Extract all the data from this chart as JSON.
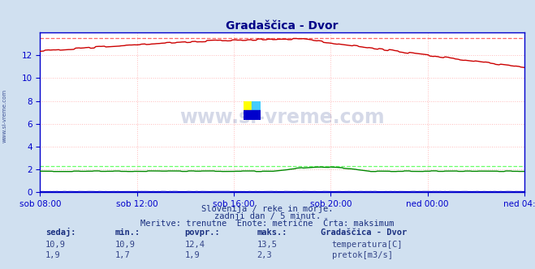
{
  "title": "Gradaščica - Dvor",
  "bg_color": "#d0e0f0",
  "plot_bg_color": "#ffffff",
  "grid_color": "#ffbbbb",
  "temp_color": "#cc0000",
  "flow_color": "#008800",
  "height_color": "#0000cc",
  "temp_max_color": "#ff6666",
  "flow_max_color": "#66ff66",
  "axis_color": "#0000cc",
  "title_color": "#000088",
  "tick_color": "#0000cc",
  "watermark_color": "#1a3080",
  "yticks": [
    0,
    2,
    4,
    6,
    8,
    10,
    12
  ],
  "ymin": 0,
  "ymax": 14.0,
  "temp_max_val": 13.5,
  "flow_max_val": 2.3,
  "temp_current": "10,9",
  "temp_min": "10,9",
  "temp_avg": "12,4",
  "temp_maks": "13,5",
  "flow_current": "1,9",
  "flow_min": "1,7",
  "flow_avg": "1,9",
  "flow_maks": "2,3",
  "xtick_labels": [
    "sob 08:00",
    "sob 12:00",
    "sob 16:00",
    "sob 20:00",
    "ned 00:00",
    "ned 04:00"
  ],
  "subtitle1": "Slovenija / reke in morje.",
  "subtitle2": "zadnji dan / 5 minut.",
  "subtitle3": "Meritve: trenutne  Enote: metrične  Črta: maksimum",
  "station_label": "Gradaščica - Dvor",
  "col_sedaj": "sedaj:",
  "col_min": "min.:",
  "col_povpr": "povpr.:",
  "col_maks": "maks.:",
  "temp_label": "temperatura[C]",
  "flow_label": "pretok[m3/s]",
  "watermark": "www.si-vreme.com",
  "side_text": "www.si-vreme.com",
  "logo_yellow": "#ffff00",
  "logo_cyan": "#44ccff",
  "logo_blue": "#0000cc"
}
